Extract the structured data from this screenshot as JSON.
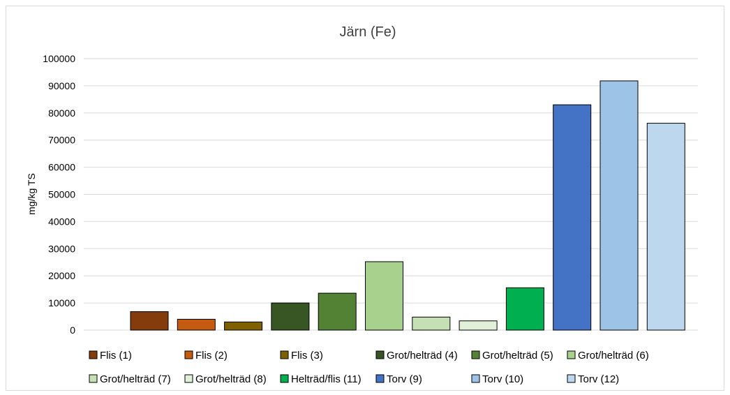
{
  "chart_data": {
    "type": "bar",
    "title": "Järn (Fe)",
    "ylabel": "mg/kg TS",
    "xlabel": "",
    "ylim": [
      0,
      100000
    ],
    "yticks": [
      0,
      10000,
      20000,
      30000,
      40000,
      50000,
      60000,
      70000,
      80000,
      90000,
      100000
    ],
    "grid": true,
    "legend_position": "bottom",
    "series": [
      {
        "name": "Flis (1)",
        "value": 6800,
        "color": "#843c0c"
      },
      {
        "name": "Flis (2)",
        "value": 4000,
        "color": "#c55a11"
      },
      {
        "name": "Flis (3)",
        "value": 3000,
        "color": "#7f6000"
      },
      {
        "name": "Grot/helträd (4)",
        "value": 10000,
        "color": "#375623"
      },
      {
        "name": "Grot/helträd (5)",
        "value": 13600,
        "color": "#548235"
      },
      {
        "name": "Grot/helträd (6)",
        "value": 25200,
        "color": "#a9d18e"
      },
      {
        "name": "Grot/helträd (7)",
        "value": 4800,
        "color": "#c5e0b4"
      },
      {
        "name": "Grot/helträd (8)",
        "value": 3400,
        "color": "#e2f0d9"
      },
      {
        "name": "Helträd/flis (11)",
        "value": 15600,
        "color": "#00b050"
      },
      {
        "name": "Torv (9)",
        "value": 83000,
        "color": "#4472c4"
      },
      {
        "name": "Torv (10)",
        "value": 91800,
        "color": "#9dc3e6"
      },
      {
        "name": "Torv (12)",
        "value": 76200,
        "color": "#bdd7ee"
      }
    ]
  }
}
